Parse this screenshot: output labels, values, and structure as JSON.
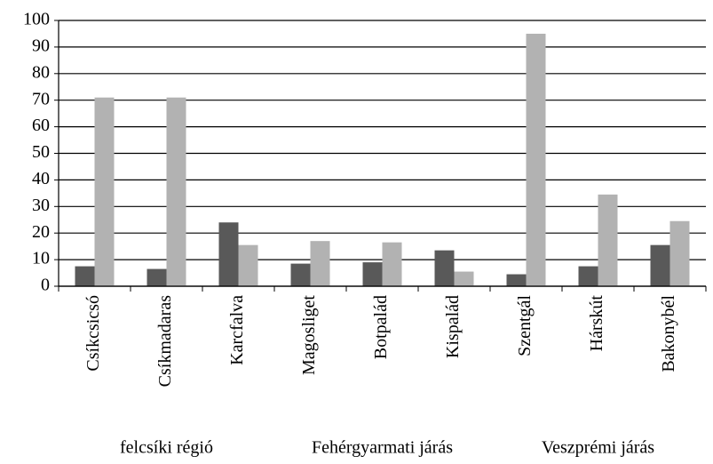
{
  "chart_data": {
    "type": "bar",
    "categories": [
      "Csíkcsicsó",
      "Csíkmadaras",
      "Karcfalva",
      "Magosliget",
      "Botpalád",
      "Kispalád",
      "Szentgál",
      "Hárskút",
      "Bakonybél"
    ],
    "groups": [
      "felcsíki régió",
      "Fehérgyarmati járás",
      "Veszprémi járás"
    ],
    "series": [
      {
        "color": "#595959",
        "values": [
          7.5,
          6.5,
          24,
          8.5,
          9,
          13.5,
          4.5,
          7.5,
          15.5
        ]
      },
      {
        "color": "#b2b2b2",
        "values": [
          71,
          71,
          15.5,
          17,
          16.5,
          5.5,
          95,
          34.5,
          24.5
        ]
      }
    ],
    "ylim": [
      0,
      100
    ],
    "yticks": [
      0,
      10,
      20,
      30,
      40,
      50,
      60,
      70,
      80,
      90,
      100
    ],
    "grid": true
  }
}
